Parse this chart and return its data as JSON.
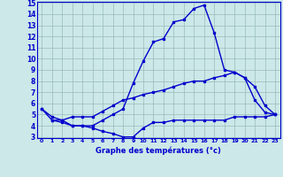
{
  "hours": [
    0,
    1,
    2,
    3,
    4,
    5,
    6,
    7,
    8,
    9,
    10,
    11,
    12,
    13,
    14,
    15,
    16,
    17,
    18,
    19,
    20,
    21,
    22,
    23
  ],
  "temp": [
    5.5,
    4.5,
    4.5,
    4.0,
    4.0,
    4.0,
    4.5,
    5.0,
    5.5,
    7.8,
    9.8,
    11.5,
    11.8,
    13.3,
    13.5,
    14.5,
    14.8,
    12.3,
    9.0,
    8.8,
    8.3,
    6.3,
    5.2,
    5.0
  ],
  "dew_max": [
    5.5,
    4.8,
    4.5,
    4.8,
    4.8,
    4.8,
    5.3,
    5.8,
    6.3,
    6.5,
    6.8,
    7.0,
    7.2,
    7.5,
    7.8,
    8.0,
    8.0,
    8.3,
    8.5,
    8.8,
    8.3,
    7.5,
    5.8,
    5.0
  ],
  "dew_min": [
    null,
    4.5,
    4.3,
    4.0,
    4.0,
    3.8,
    3.5,
    3.3,
    3.0,
    3.0,
    3.8,
    4.3,
    4.3,
    4.5,
    4.5,
    4.5,
    4.5,
    4.5,
    4.5,
    4.8,
    4.8,
    4.8,
    4.8,
    5.0
  ],
  "line_color": "#0000cc",
  "bg_color": "#cce8e8",
  "grid_color": "#99bbbb",
  "xlabel": "Graphe des températures (°c)",
  "ylim_min": 3,
  "ylim_max": 15,
  "xlim_min": -0.5,
  "xlim_max": 23.5
}
